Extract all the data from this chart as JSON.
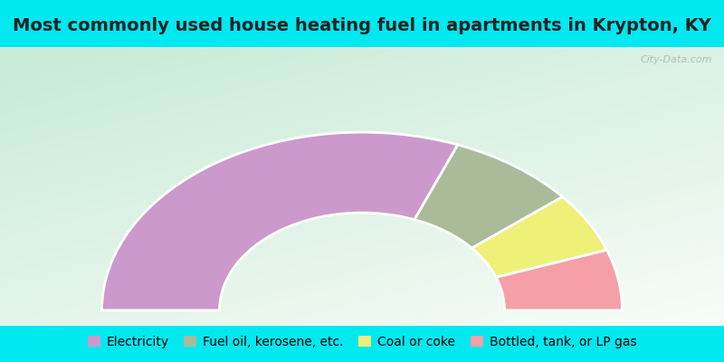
{
  "title": "Most commonly used house heating fuel in apartments in Krypton, KY",
  "segments": [
    {
      "label": "Electricity",
      "value": 62,
      "color": "#cc99cc"
    },
    {
      "label": "Fuel oil, kerosene, etc.",
      "value": 16,
      "color": "#aabb99"
    },
    {
      "label": "Coal or coke",
      "value": 11,
      "color": "#eef077"
    },
    {
      "label": "Bottled, tank, or LP gas",
      "value": 11,
      "color": "#f5a0a8"
    }
  ],
  "bg_color_cyan": "#00e8f0",
  "bg_color_chart_green": "#b8e8cc",
  "bg_color_chart_white": "#f0f8f4",
  "title_fontsize": 14,
  "legend_fontsize": 10,
  "watermark": "City-Data.com"
}
